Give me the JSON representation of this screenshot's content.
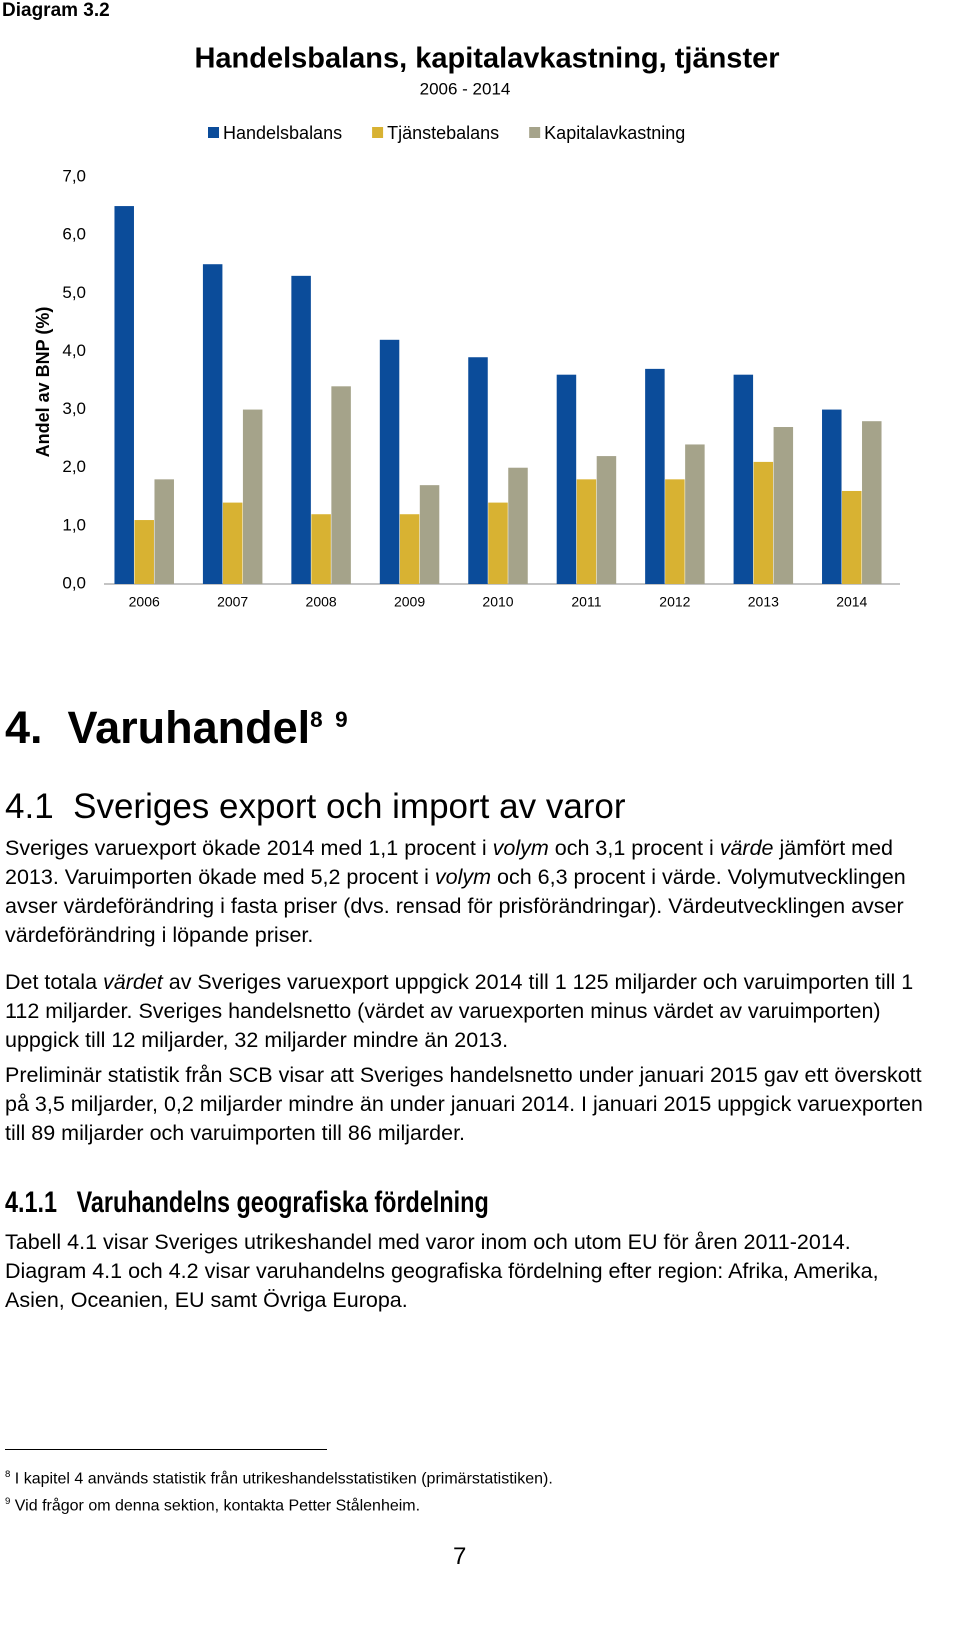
{
  "diagram_label": "Diagram 3.2",
  "chart_data": {
    "type": "bar",
    "title": "Handelsbalans, kapitalavkastning, tjänster",
    "subtitle": "2006 - 2014",
    "y_label": "Andel av BNP (%)",
    "categories": [
      "2006",
      "2007",
      "2008",
      "2009",
      "2010",
      "2011",
      "2012",
      "2013",
      "2014"
    ],
    "series": [
      {
        "name": "Handelsbalans",
        "color": "#0b4c9a",
        "values": [
          6.5,
          5.5,
          5.3,
          4.2,
          3.9,
          3.6,
          3.7,
          3.6,
          3.0
        ]
      },
      {
        "name": "Tjänstebalans",
        "color": "#d8b232",
        "values": [
          1.1,
          1.4,
          1.2,
          1.2,
          1.4,
          1.8,
          1.8,
          2.1,
          1.6
        ]
      },
      {
        "name": "Kapitalavkastning",
        "color": "#a5a38a",
        "values": [
          1.8,
          3.0,
          3.4,
          1.7,
          2.0,
          2.2,
          2.4,
          2.7,
          2.8
        ]
      }
    ],
    "ylim": [
      0,
      7
    ],
    "yticks": [
      {
        "value": 0,
        "label": "0,0"
      },
      {
        "value": 1,
        "label": "1,0"
      },
      {
        "value": 2,
        "label": "2,0"
      },
      {
        "value": 3,
        "label": "3,0"
      },
      {
        "value": 4,
        "label": "4,0"
      },
      {
        "value": 5,
        "label": "5,0"
      },
      {
        "value": 6,
        "label": "6,0"
      },
      {
        "value": 7,
        "label": "7,0"
      }
    ],
    "grid": false,
    "legend": "top"
  },
  "document": {
    "heading": {
      "number": "4.",
      "title": "Varuhandel",
      "footnote_refs": [
        "8",
        "9"
      ]
    },
    "section": {
      "number": "4.1",
      "title": "Sveriges export och import av varor"
    },
    "section_paragraphs": [
      [
        "Sveriges varuexport ökade 2014 med 1,1 procent i ",
        "volym",
        " och 3,1 procent i ",
        "värde",
        " jämfört med 2013. Varuimporten ökade med 5,2 procent i ",
        "volym",
        " och 6,3 procent i värde. Volymutvecklingen avser värdeförändring i fasta priser (dvs. rensad för prisförändringar). Värdeutvecklingen avser värdeförändring i löpande priser."
      ],
      [
        "Det totala ",
        "värdet",
        " av Sveriges varuexport uppgick 2014 till 1 125 miljarder och varuimporten till 1 112 miljarder. Sveriges handelsnetto (värdet av varuexporten minus värdet av varuimporten) uppgick till 12 miljarder, 32 miljarder mindre än 2013."
      ],
      [
        "Preliminär statistik från SCB visar att Sveriges handelsnetto under januari 2015 gav ett överskott på 3,5 miljarder, 0,2 miljarder mindre än under januari 2014. I januari 2015 uppgick varuexporten till 89 miljarder och varuimporten till 86 miljarder."
      ]
    ],
    "subsection": {
      "number": "4.1.1",
      "title": "Varuhandelns geografiska fördelning"
    },
    "subsection_paragraphs": [
      [
        "Tabell 4.1 visar Sveriges utrikeshandel med varor inom och utom EU för åren 2011-2014. Diagram 4.1 och 4.2 visar varuhandelns geografiska fördelning efter region: Afrika, Amerika, Asien, Oceanien, EU samt Övriga Europa."
      ]
    ],
    "footnotes": [
      {
        "number": "8",
        "text": "I kapitel 4 används statistik från utrikeshandelsstatistiken (primärstatistiken)."
      },
      {
        "number": "9",
        "text": "Vid frågor om denna sektion, kontakta Petter Stålenheim."
      }
    ],
    "page_number": "7"
  }
}
